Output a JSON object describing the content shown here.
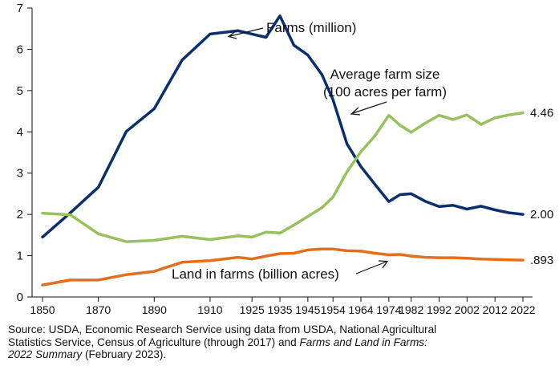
{
  "chart_data": {
    "type": "line",
    "title": "",
    "xlabel": "",
    "ylabel": "",
    "ylim": [
      0,
      7
    ],
    "yticks": [
      "0",
      "1",
      "2",
      "3",
      "4",
      "5",
      "6",
      "7"
    ],
    "xticks": [
      1850,
      1870,
      1890,
      1910,
      1925,
      1935,
      1945,
      1954,
      1964,
      1974,
      1982,
      1992,
      2002,
      2012,
      2022
    ],
    "grid": false,
    "series": [
      {
        "name": "Farms (million)",
        "color": "#0b2f6b",
        "end_label": "2.00",
        "points": [
          [
            1850,
            1.45
          ],
          [
            1860,
            2.04
          ],
          [
            1870,
            2.66
          ],
          [
            1880,
            4.01
          ],
          [
            1890,
            4.56
          ],
          [
            1900,
            5.74
          ],
          [
            1910,
            6.37
          ],
          [
            1920,
            6.45
          ],
          [
            1925,
            6.37
          ],
          [
            1930,
            6.29
          ],
          [
            1935,
            6.81
          ],
          [
            1940,
            6.1
          ],
          [
            1945,
            5.86
          ],
          [
            1950,
            5.39
          ],
          [
            1954,
            4.78
          ],
          [
            1959,
            3.71
          ],
          [
            1964,
            3.16
          ],
          [
            1969,
            2.73
          ],
          [
            1974,
            2.31
          ],
          [
            1978,
            2.48
          ],
          [
            1982,
            2.5
          ],
          [
            1987,
            2.32
          ],
          [
            1992,
            2.19
          ],
          [
            1997,
            2.22
          ],
          [
            2002,
            2.13
          ],
          [
            2007,
            2.2
          ],
          [
            2012,
            2.11
          ],
          [
            2017,
            2.04
          ],
          [
            2022,
            2.0
          ]
        ]
      },
      {
        "name": "Average farm size (100 acres per farm)",
        "color": "#97c15c",
        "end_label": "4.46",
        "points": [
          [
            1850,
            2.03
          ],
          [
            1860,
            1.99
          ],
          [
            1870,
            1.53
          ],
          [
            1880,
            1.34
          ],
          [
            1890,
            1.37
          ],
          [
            1900,
            1.47
          ],
          [
            1910,
            1.39
          ],
          [
            1920,
            1.48
          ],
          [
            1925,
            1.45
          ],
          [
            1930,
            1.57
          ],
          [
            1935,
            1.55
          ],
          [
            1940,
            1.74
          ],
          [
            1945,
            1.95
          ],
          [
            1950,
            2.16
          ],
          [
            1954,
            2.42
          ],
          [
            1959,
            3.03
          ],
          [
            1964,
            3.52
          ],
          [
            1969,
            3.9
          ],
          [
            1974,
            4.4
          ],
          [
            1978,
            4.16
          ],
          [
            1982,
            3.99
          ],
          [
            1987,
            4.21
          ],
          [
            1992,
            4.4
          ],
          [
            1997,
            4.3
          ],
          [
            2002,
            4.41
          ],
          [
            2007,
            4.18
          ],
          [
            2012,
            4.34
          ],
          [
            2017,
            4.41
          ],
          [
            2022,
            4.46
          ]
        ]
      },
      {
        "name": "Land in farms (billion acres)",
        "color": "#e36f1e",
        "end_label": ".893",
        "points": [
          [
            1850,
            0.29
          ],
          [
            1860,
            0.41
          ],
          [
            1870,
            0.41
          ],
          [
            1880,
            0.54
          ],
          [
            1890,
            0.62
          ],
          [
            1900,
            0.84
          ],
          [
            1910,
            0.88
          ],
          [
            1920,
            0.96
          ],
          [
            1925,
            0.92
          ],
          [
            1930,
            0.99
          ],
          [
            1935,
            1.05
          ],
          [
            1940,
            1.06
          ],
          [
            1945,
            1.14
          ],
          [
            1950,
            1.16
          ],
          [
            1954,
            1.16
          ],
          [
            1959,
            1.12
          ],
          [
            1964,
            1.11
          ],
          [
            1969,
            1.06
          ],
          [
            1974,
            1.02
          ],
          [
            1978,
            1.03
          ],
          [
            1982,
            0.99
          ],
          [
            1987,
            0.96
          ],
          [
            1992,
            0.95
          ],
          [
            1997,
            0.95
          ],
          [
            2002,
            0.94
          ],
          [
            2007,
            0.92
          ],
          [
            2012,
            0.91
          ],
          [
            2017,
            0.9
          ],
          [
            2022,
            0.893
          ]
        ]
      }
    ],
    "annotations": {
      "farms": "Farms (million)",
      "size_line1": "Average farm size",
      "size_line2": "(100 acres per farm)",
      "land": "Land in farms (billion acres)"
    }
  },
  "source": {
    "line1": "Source: USDA, Economic Research Service using data from USDA, National Agricultural",
    "line2_plain": "Statistics Service, Census of Agriculture (through 2017) and ",
    "line2_italic": "Farms and Land in Farms:",
    "line3_italic": "2022 Summary",
    "line3_plain": " (February 2023)."
  }
}
